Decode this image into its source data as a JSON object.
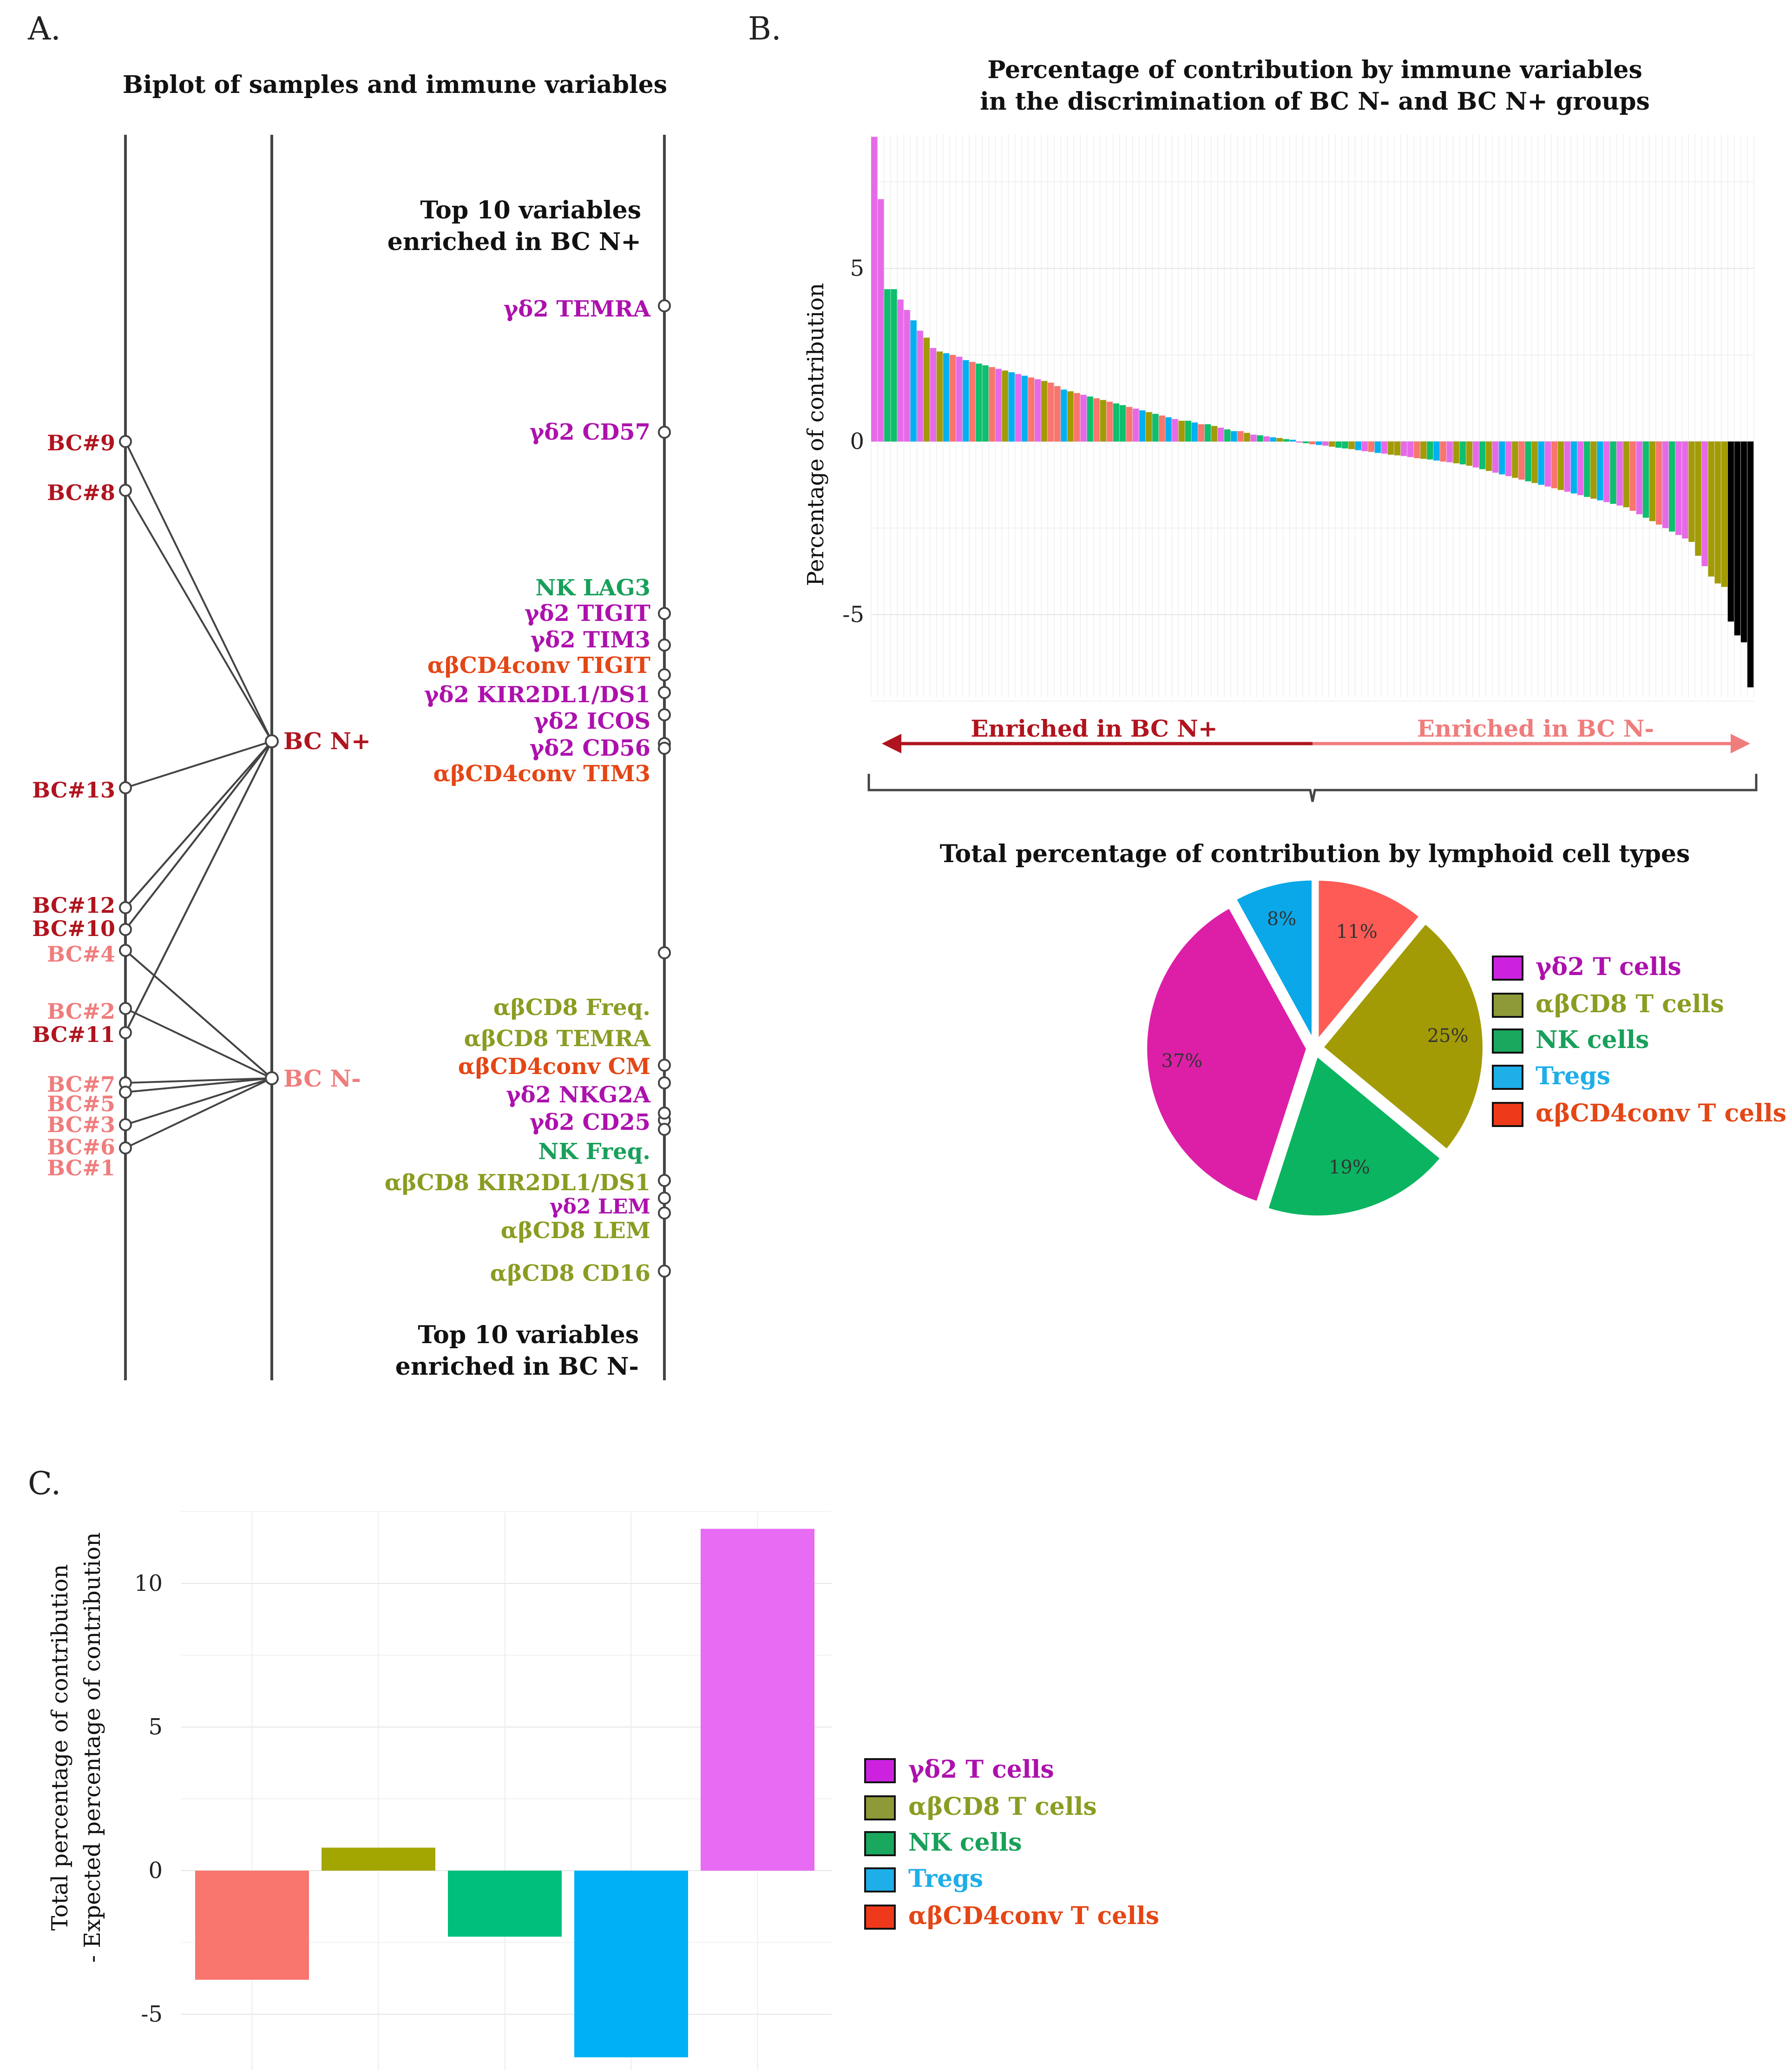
{
  "colors": {
    "dark_red": "#b0141e",
    "light_red": "#f07c7c",
    "magenta": "#ad11ad",
    "green": "#18a05a",
    "olive": "#8b9c22",
    "orange_red": "#e44615",
    "gd2": "#e66ae8",
    "cd8": "#a39b05",
    "nk": "#0dbf6e",
    "treg": "#00b0f0",
    "cd4": "#f8766d",
    "line": "#444444"
  },
  "panel_labels": {
    "a": "A.",
    "b": "B.",
    "c": "C."
  },
  "panel_a": {
    "title": "Biplot of samples and immune variables",
    "group_nplus": "BC N+",
    "group_nminus": "BC N-",
    "top_header": [
      "Top 10 variables",
      "enriched in BC N+"
    ],
    "bottom_header": [
      "Top 10 variables",
      "enriched in BC N-"
    ],
    "samples": [
      {
        "label": "BC#9",
        "group": "N+",
        "value_rank": 1
      },
      {
        "label": "BC#8",
        "group": "N+",
        "value_rank": 2
      },
      {
        "label": "BC#13",
        "group": "N+",
        "value_rank": 3
      },
      {
        "label": "BC#12",
        "group": "N+",
        "value_rank": 4
      },
      {
        "label": "BC#10",
        "group": "N+",
        "value_rank": 5
      },
      {
        "label": "BC#4",
        "group": "N-",
        "value_rank": 6
      },
      {
        "label": "BC#2",
        "group": "N-",
        "value_rank": 7
      },
      {
        "label": "BC#11",
        "group": "N+",
        "value_rank": 8
      },
      {
        "label": "BC#7",
        "group": "N-",
        "value_rank": 9
      },
      {
        "label": "BC#5",
        "group": "N-",
        "value_rank": 10
      },
      {
        "label": "BC#3",
        "group": "N-",
        "value_rank": 11
      },
      {
        "label": "BC#6",
        "group": "N-",
        "value_rank": 12
      },
      {
        "label": "BC#1",
        "group": "N-",
        "value_rank": 13
      }
    ],
    "top_vars": [
      {
        "label": "γδ2 TEMRA",
        "type": "gd2"
      },
      {
        "label": "γδ2 CD57",
        "type": "gd2"
      },
      {
        "label": "NK LAG3",
        "type": "nk"
      },
      {
        "label": "γδ2 TIGIT",
        "type": "gd2"
      },
      {
        "label": "γδ2 TIM3",
        "type": "gd2"
      },
      {
        "label": "αβCD4conv TIGIT",
        "type": "cd4"
      },
      {
        "label": "γδ2 KIR2DL1/DS1",
        "type": "gd2"
      },
      {
        "label": "γδ2 ICOS",
        "type": "gd2"
      },
      {
        "label": "γδ2 CD56",
        "type": "gd2"
      },
      {
        "label": "αβCD4conv TIM3",
        "type": "cd4"
      }
    ],
    "bottom_vars": [
      {
        "label": "αβCD8 Freq.",
        "type": "cd8"
      },
      {
        "label": "αβCD8 TEMRA",
        "type": "cd8"
      },
      {
        "label": "αβCD4conv CM",
        "type": "cd4"
      },
      {
        "label": "γδ2 NKG2A",
        "type": "gd2"
      },
      {
        "label": "γδ2 CD25",
        "type": "gd2"
      },
      {
        "label": "NK Freq.",
        "type": "nk"
      },
      {
        "label": "αβCD8 KIR2DL1/DS1",
        "type": "cd8"
      },
      {
        "label": "γδ2 LEM",
        "type": "gd2"
      },
      {
        "label": "αβCD8 LEM",
        "type": "cd8"
      },
      {
        "label": "αβCD8 CD16",
        "type": "cd8"
      }
    ]
  },
  "chart_data": [
    {
      "id": "B-bar",
      "type": "bar",
      "title": "Percentage of contribution by immune variables in the discrimination of BC N- and BC N+ groups",
      "title_lines": [
        "Percentage of contribution by immune variables",
        "in the discrimination of BC N- and BC N+ groups"
      ],
      "xlabel": "",
      "ylabel": "Percentage of contribution",
      "ylim": [
        -7.3,
        8.8
      ],
      "yticks": [
        5,
        0,
        -5
      ],
      "grid": true,
      "enriched_left": "Enriched in BC N+",
      "enriched_right": "Enriched in BC N-",
      "series_types": [
        "gd2",
        "gd2",
        "nk",
        "nk",
        "gd2",
        "gd2",
        "treg",
        "gd2",
        "cd8",
        "gd2",
        "cd8",
        "treg",
        "cd4",
        "gd2",
        "treg",
        "cd4",
        "nk",
        "nk",
        "cd4",
        "gd2",
        "cd8",
        "treg",
        "gd2",
        "treg",
        "cd4",
        "gd2",
        "cd8",
        "cd4",
        "cd4",
        "treg",
        "cd8",
        "cd4",
        "gd2",
        "nk",
        "cd4",
        "cd8",
        "cd4",
        "nk",
        "nk",
        "cd4",
        "gd2",
        "treg",
        "cd8",
        "nk",
        "cd4",
        "treg",
        "gd2",
        "cd8",
        "nk",
        "treg",
        "cd4",
        "nk",
        "cd8",
        "gd2",
        "nk",
        "treg",
        "cd4",
        "cd8",
        "gd2",
        "nk",
        "gd2",
        "treg",
        "cd8",
        "nk",
        "treg",
        "gd2",
        "nk",
        "cd4",
        "treg",
        "gd2",
        "cd8",
        "nk",
        "nk",
        "cd8",
        "treg",
        "gd2",
        "cd4",
        "treg",
        "gd2",
        "cd8",
        "cd8",
        "gd2",
        "gd2",
        "cd4",
        "cd8",
        "nk",
        "treg",
        "cd4",
        "gd2",
        "cd8",
        "nk",
        "cd8",
        "gd2",
        "nk",
        "cd8",
        "gd2",
        "treg",
        "gd2",
        "cd8",
        "cd4",
        "nk",
        "cd8",
        "treg",
        "gd2",
        "cd4",
        "cd8",
        "gd2",
        "treg",
        "gd2",
        "nk",
        "cd8",
        "treg",
        "gd2",
        "nk",
        "gd2",
        "cd8",
        "cd4",
        "gd2",
        "nk",
        "cd8",
        "cd4",
        "gd2",
        "nk",
        "gd2",
        "gd2",
        "cd8",
        "cd8",
        "gd2",
        "cd8",
        "cd8",
        "cd8"
      ],
      "values": [
        8.8,
        7.0,
        4.4,
        4.4,
        4.1,
        3.8,
        3.5,
        3.2,
        3.0,
        2.7,
        2.6,
        2.55,
        2.5,
        2.45,
        2.35,
        2.3,
        2.25,
        2.2,
        2.15,
        2.1,
        2.05,
        2.0,
        1.95,
        1.9,
        1.85,
        1.8,
        1.75,
        1.7,
        1.6,
        1.5,
        1.45,
        1.4,
        1.35,
        1.3,
        1.25,
        1.2,
        1.15,
        1.1,
        1.05,
        1.0,
        0.95,
        0.9,
        0.85,
        0.8,
        0.75,
        0.7,
        0.65,
        0.6,
        0.6,
        0.55,
        0.5,
        0.5,
        0.45,
        0.4,
        0.35,
        0.3,
        0.3,
        0.25,
        0.2,
        0.18,
        0.15,
        0.12,
        0.1,
        0.07,
        0.05,
        -0.03,
        -0.05,
        -0.08,
        -0.1,
        -0.12,
        -0.15,
        -0.18,
        -0.2,
        -0.22,
        -0.25,
        -0.28,
        -0.3,
        -0.33,
        -0.35,
        -0.38,
        -0.4,
        -0.42,
        -0.45,
        -0.48,
        -0.5,
        -0.52,
        -0.55,
        -0.58,
        -0.6,
        -0.63,
        -0.66,
        -0.7,
        -0.75,
        -0.8,
        -0.85,
        -0.9,
        -0.95,
        -1.0,
        -1.05,
        -1.1,
        -1.15,
        -1.2,
        -1.25,
        -1.3,
        -1.35,
        -1.4,
        -1.45,
        -1.5,
        -1.55,
        -1.6,
        -1.65,
        -1.7,
        -1.75,
        -1.8,
        -1.85,
        -1.9,
        -2.0,
        -2.1,
        -2.2,
        -2.3,
        -2.4,
        -2.5,
        -2.6,
        -2.7,
        -2.8,
        -2.9,
        -3.3,
        -3.6,
        -3.9,
        -4.1,
        -4.2,
        -5.2,
        -5.6,
        -5.8,
        -7.1
      ]
    },
    {
      "id": "B-pie",
      "type": "pie",
      "title": "Total percentage of contribution by lymphoid cell types",
      "slices": [
        {
          "type": "cd4",
          "label": "αβCD4conv T cells",
          "value": 11,
          "text": "11%"
        },
        {
          "type": "cd8",
          "label": "αβCD8 T cells",
          "value": 25,
          "text": "25%"
        },
        {
          "type": "nk",
          "label": "NK cells",
          "value": 19,
          "text": "19%"
        },
        {
          "type": "gd2",
          "label": "γδ2 T cells",
          "value": 37,
          "text": "37%"
        },
        {
          "type": "treg",
          "label": "Tregs",
          "value": 8,
          "text": "8%"
        }
      ]
    },
    {
      "id": "C-bar",
      "type": "bar",
      "title": "",
      "xlabel": "",
      "ylabel": [
        "Total percentage of contribution",
        "- Expected percentage of contribution"
      ],
      "ylim": [
        -6.5,
        12.2
      ],
      "yticks": [
        10,
        5,
        0,
        -5
      ],
      "grid": true,
      "categories": [
        "αβCD4conv T cells",
        "αβCD8 T cells",
        "NK cells",
        "Tregs",
        "γδ2 T cells"
      ],
      "types": [
        "cd4",
        "cd8",
        "nk",
        "treg",
        "gd2"
      ],
      "values": [
        -3.8,
        0.8,
        -2.3,
        -6.5,
        11.9
      ]
    }
  ],
  "legend": [
    {
      "type": "gd2",
      "label": "γδ2 T cells",
      "swatch": "#cc22e0",
      "text_color": "#ad11ad"
    },
    {
      "type": "cd8",
      "label": "αβCD8 T cells",
      "swatch": "#8e9a38",
      "text_color": "#8b9c22"
    },
    {
      "type": "nk",
      "label": "NK cells",
      "swatch": "#19a85e",
      "text_color": "#18a05a"
    },
    {
      "type": "treg",
      "label": "Tregs",
      "swatch": "#1eaee8",
      "text_color": "#1eaee8"
    },
    {
      "type": "cd4",
      "label": "αβCD4conv T cells",
      "swatch": "#ee3a1a",
      "text_color": "#e44615"
    }
  ]
}
